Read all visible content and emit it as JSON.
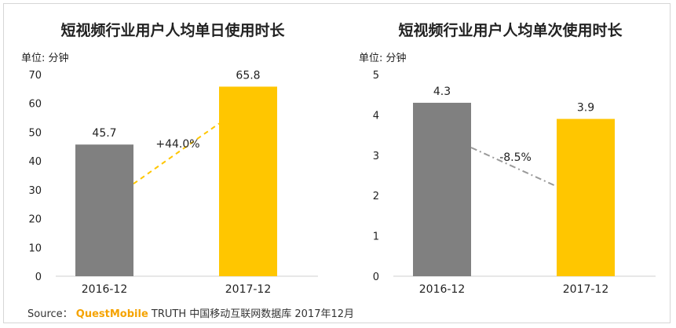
{
  "chart_data": [
    {
      "type": "bar",
      "title": "短视频行业用户人均单日使用时长",
      "unit_label": "单位: 分钟",
      "categories": [
        "2016-12",
        "2017-12"
      ],
      "values": [
        45.7,
        65.8
      ],
      "value_labels": [
        "45.7",
        "65.8"
      ],
      "bar_colors": [
        "#808080",
        "#ffc600"
      ],
      "ylim": [
        0,
        70
      ],
      "yticks": [
        0,
        10,
        20,
        30,
        40,
        50,
        60,
        70
      ],
      "growth_label": "+44.0%",
      "growth_line_color": "#ffc600"
    },
    {
      "type": "bar",
      "title": "短视频行业用户人均单次使用时长",
      "unit_label": "单位: 分钟",
      "categories": [
        "2016-12",
        "2017-12"
      ],
      "values": [
        4.3,
        3.9
      ],
      "value_labels": [
        "4.3",
        "3.9"
      ],
      "bar_colors": [
        "#808080",
        "#ffc600"
      ],
      "ylim": [
        0,
        5
      ],
      "yticks": [
        0,
        1,
        2,
        3,
        4,
        5
      ],
      "growth_label": "-8.5%",
      "growth_line_color": "#9a9a9a"
    }
  ],
  "source": {
    "prefix": "Source：",
    "brand": "QuestMobile",
    "text": "TRUTH 中国移动互联网数据库 2017年12月"
  }
}
